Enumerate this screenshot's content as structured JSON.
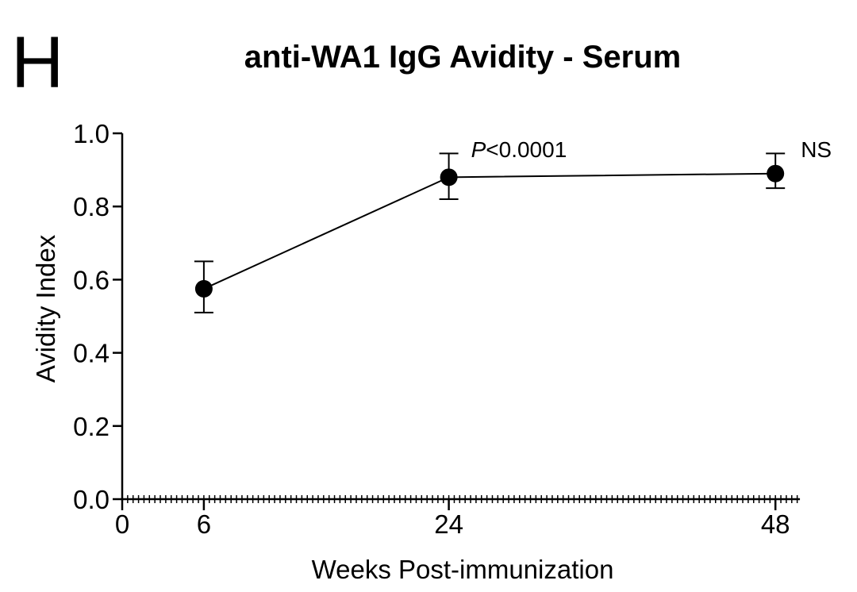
{
  "panel_label": "H",
  "chart_data": {
    "type": "line",
    "title": "anti-WA1 IgG Avidity - Serum",
    "xlabel": "Weeks Post-immunization",
    "ylabel": "Avidity Index",
    "x": [
      6,
      24,
      48
    ],
    "y": [
      0.575,
      0.88,
      0.89
    ],
    "err_up": [
      0.075,
      0.065,
      0.055
    ],
    "err_down": [
      0.065,
      0.06,
      0.04
    ],
    "xlim": [
      0,
      49.8
    ],
    "ylim": [
      0,
      1
    ],
    "x_major_ticks": [
      0,
      6,
      24,
      48
    ],
    "x_tick_labels": [
      "0",
      "6",
      "24",
      "48"
    ],
    "x_minor_step": 0.4,
    "y_ticks": [
      0,
      0.2,
      0.4,
      0.6,
      0.8,
      1.0
    ],
    "y_tick_labels": [
      "0.0",
      "0.2",
      "0.4",
      "0.6",
      "0.8",
      "1.0"
    ],
    "grid": false,
    "legend": "none",
    "marker": "filled-circle",
    "colors": {
      "foreground": "#000000",
      "background": "#ffffff"
    },
    "annotations": [
      {
        "italic": "P",
        "text": "<0.0001",
        "week": 24,
        "dx": 28,
        "value": 0.935
      },
      {
        "italic": "",
        "text": "NS",
        "week": 48,
        "dx": 32,
        "value": 0.935
      }
    ]
  }
}
